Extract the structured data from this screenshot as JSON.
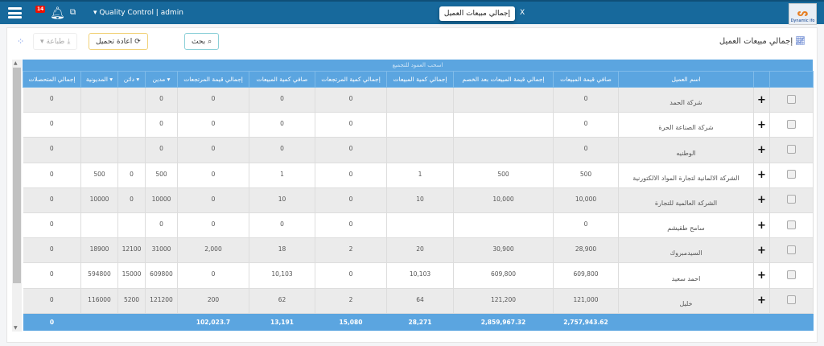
{
  "topbar": {
    "notification_count": "14",
    "user_label": "Quality Control | admin",
    "active_tab": "إجمالي مبيعات العميل",
    "close_tab": "X",
    "logo_text": "Dynamic ifo"
  },
  "page": {
    "title": "إجمالي مبيعات العميل"
  },
  "toolbar": {
    "search": "بحث",
    "reload": "اعادة تحميل",
    "print": "طباعة"
  },
  "grid": {
    "group_hint": "اسحب العمود للتجميع",
    "columns": [
      "إجمالي المتحصلات",
      "المديونية ▾",
      "دائن ▾",
      "مدين ▾",
      "إجمالي قيمة المرتجعات",
      "صافي كمية المبيعات",
      "إجمالي كمية المرتجعات",
      "إجمالي كمية المبيعات",
      "إجمالي قيمة المبيعات بعد الخصم",
      "صافي قيمة المبيعات",
      "اسم العميل",
      "",
      ""
    ],
    "rows": [
      [
        "0",
        "",
        "",
        "0",
        "0",
        "0",
        "0",
        "",
        "",
        "0",
        "شركة الحمد"
      ],
      [
        "0",
        "",
        "",
        "0",
        "0",
        "0",
        "0",
        "",
        "",
        "0",
        "شركة الصناعة الحرة"
      ],
      [
        "0",
        "",
        "",
        "0",
        "0",
        "0",
        "0",
        "",
        "",
        "0",
        "الوطنيه"
      ],
      [
        "0",
        "500",
        "0",
        "500",
        "0",
        "1",
        "0",
        "1",
        "500",
        "500",
        "الشركة الالمانية لتجارة المواد الالكتورنية"
      ],
      [
        "0",
        "10000",
        "0",
        "10000",
        "0",
        "10",
        "0",
        "10",
        "10,000",
        "10,000",
        "الشركة العالمية للتجارة"
      ],
      [
        "0",
        "",
        "",
        "0",
        "0",
        "0",
        "0",
        "",
        "",
        "0",
        "سامح طقيشم"
      ],
      [
        "0",
        "18900",
        "12100",
        "31000",
        "2,000",
        "18",
        "2",
        "20",
        "30,900",
        "28,900",
        "السيدمبروك"
      ],
      [
        "0",
        "594800",
        "15000",
        "609800",
        "0",
        "10,103",
        "0",
        "10,103",
        "609,800",
        "609,800",
        "احمد سعيد"
      ],
      [
        "0",
        "116000",
        "5200",
        "121200",
        "200",
        "62",
        "2",
        "64",
        "121,200",
        "121,000",
        "خليل"
      ]
    ],
    "totals": [
      "0",
      "",
      "",
      "",
      "102,023.7",
      "13,191",
      "15,080",
      "28,271",
      "2,859,967.32",
      "2,757,943.62",
      "",
      "",
      ""
    ]
  }
}
